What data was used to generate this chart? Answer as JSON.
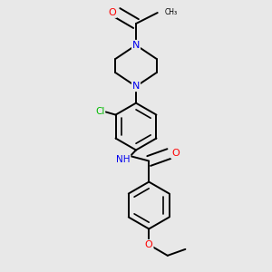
{
  "background_color": "#e8e8e8",
  "bond_color": "#000000",
  "atom_colors": {
    "O": "#ff0000",
    "N": "#0000ee",
    "Cl": "#00bb00",
    "C": "#000000",
    "H": "#000000"
  },
  "figsize": [
    3.0,
    3.0
  ],
  "dpi": 100,
  "xlim": [
    0.15,
    0.85
  ],
  "ylim": [
    0.03,
    0.97
  ]
}
